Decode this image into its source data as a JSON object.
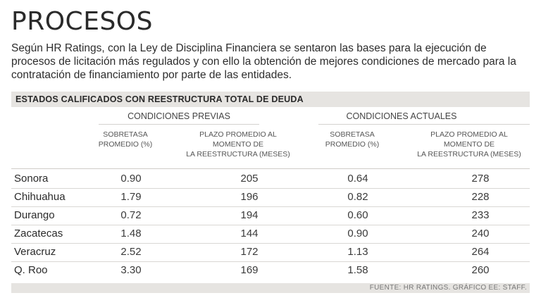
{
  "title": "PROCESOS",
  "intro": "Según HR Ratings, con la Ley de Disciplina Financiera se sentaron las bases para la ejecución de procesos de licitación más regulados y con ello la obtención de mejores condiciones de mercado para la contratación de financiamiento por parte de las entidades.",
  "table": {
    "section_title": "ESTADOS CALIFICADOS CON REESTRUCTURA TOTAL DE DEUDA",
    "group_previas": "CONDICIONES PREVIAS",
    "group_actuales": "CONDICIONES ACTUALES",
    "sub_sobretasa_1": "SOBRETASA",
    "sub_sobretasa_2": "PROMEDIO (%)",
    "sub_plazo_1": "PLAZO PROMEDIO AL",
    "sub_plazo_2": "MOMENTO DE",
    "sub_plazo_3": "LA REESTRUCTURA (MESES)",
    "rows": [
      {
        "state": "Sonora",
        "prev_rate": "0.90",
        "prev_term": "205",
        "curr_rate": "0.64",
        "curr_term": "278"
      },
      {
        "state": "Chihuahua",
        "prev_rate": "1.79",
        "prev_term": "196",
        "curr_rate": "0.82",
        "curr_term": "228"
      },
      {
        "state": "Durango",
        "prev_rate": "0.72",
        "prev_term": "194",
        "curr_rate": "0.60",
        "curr_term": "233"
      },
      {
        "state": "Zacatecas",
        "prev_rate": "1.48",
        "prev_term": "144",
        "curr_rate": "0.90",
        "curr_term": "240"
      },
      {
        "state": "Veracruz",
        "prev_rate": "2.52",
        "prev_term": "172",
        "curr_rate": "1.13",
        "curr_term": "264"
      },
      {
        "state": "Q. Roo",
        "prev_rate": "3.30",
        "prev_term": "169",
        "curr_rate": "1.58",
        "curr_term": "260"
      }
    ]
  },
  "footer": "FUENTE: HR RATINGS. GRÁFICO EE: STAFF."
}
